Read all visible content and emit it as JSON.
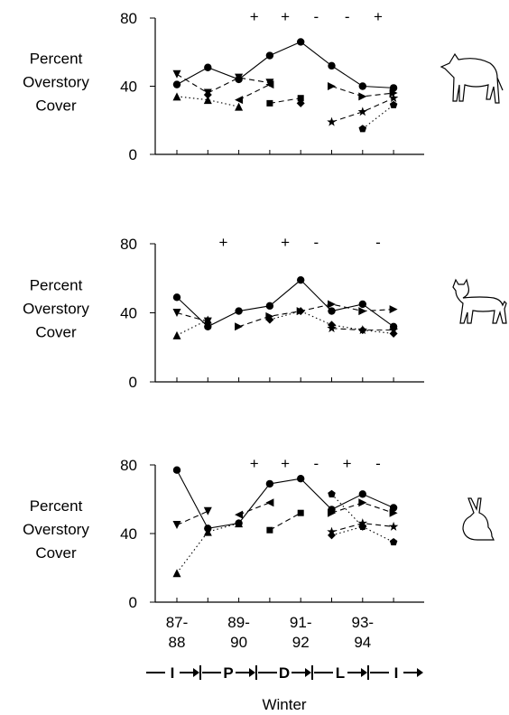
{
  "chart_data": [
    {
      "type": "line",
      "ylabel": "Percent Overstory Cover",
      "ylim": [
        0,
        80
      ],
      "yticks": [
        0,
        40,
        80
      ],
      "changes": [
        null,
        null,
        "+",
        "+",
        "-",
        "-",
        "+"
      ],
      "series": [
        {
          "marker": "circle",
          "dash": "solid",
          "color": "#000000",
          "values": [
            41,
            51,
            44,
            58,
            66,
            52,
            40,
            39
          ]
        },
        {
          "marker": "triangle-down",
          "dash": "dashed",
          "color": "#000000",
          "values": [
            47,
            36,
            45,
            42,
            null,
            null,
            null,
            null
          ]
        },
        {
          "marker": "triangle-up",
          "dash": "dotted",
          "color": "#000000",
          "values": [
            34,
            32,
            28,
            null,
            null,
            null,
            null,
            null
          ]
        },
        {
          "marker": "triangle-left",
          "dash": "dashed",
          "color": "#000000",
          "values": [
            null,
            null,
            32,
            41,
            null,
            null,
            null,
            null
          ]
        },
        {
          "marker": "square",
          "dash": "dashed",
          "color": "#000000",
          "values": [
            null,
            null,
            null,
            30,
            33,
            null,
            null,
            null
          ]
        },
        {
          "marker": "diamond",
          "dash": "dotted",
          "color": "#000000",
          "values": [
            null,
            35,
            null,
            null,
            30,
            null,
            null,
            null
          ]
        },
        {
          "marker": "triangle-right",
          "dash": "dashed",
          "color": "#000000",
          "values": [
            null,
            null,
            null,
            null,
            null,
            40,
            34,
            36
          ]
        },
        {
          "marker": "star",
          "dash": "dashed",
          "color": "#000000",
          "values": [
            null,
            null,
            null,
            null,
            null,
            19,
            25,
            33
          ]
        },
        {
          "marker": "pentagon",
          "dash": "dotted",
          "color": "#000000",
          "values": [
            null,
            null,
            null,
            null,
            null,
            null,
            15,
            29
          ]
        }
      ]
    },
    {
      "type": "line",
      "ylabel": "Percent Overstory Cover",
      "ylim": [
        0,
        80
      ],
      "yticks": [
        0,
        40,
        80
      ],
      "changes": [
        null,
        "+",
        null,
        "+",
        "-",
        null,
        "-"
      ],
      "series": [
        {
          "marker": "circle",
          "dash": "solid",
          "color": "#000000",
          "values": [
            49,
            32,
            41,
            44,
            59,
            41,
            45,
            32
          ]
        },
        {
          "marker": "triangle-down",
          "dash": "dashed",
          "color": "#000000",
          "values": [
            40,
            35,
            null,
            null,
            null,
            null,
            null,
            null
          ]
        },
        {
          "marker": "triangle-up",
          "dash": "dotted",
          "color": "#000000",
          "values": [
            27,
            36,
            null,
            null,
            null,
            null,
            null,
            null
          ]
        },
        {
          "marker": "triangle-right",
          "dash": "dashed",
          "color": "#000000",
          "values": [
            null,
            null,
            32,
            38,
            41,
            45,
            41,
            42
          ]
        },
        {
          "marker": "diamond",
          "dash": "dotted",
          "color": "#000000",
          "values": [
            null,
            null,
            null,
            36,
            41,
            33,
            30,
            28
          ]
        },
        {
          "marker": "star",
          "dash": "dashed",
          "color": "#000000",
          "values": [
            null,
            null,
            null,
            null,
            null,
            31,
            30,
            30
          ]
        }
      ]
    },
    {
      "type": "line",
      "ylabel": "Percent Overstory Cover",
      "ylim": [
        0,
        80
      ],
      "yticks": [
        0,
        40,
        80
      ],
      "changes": [
        null,
        null,
        "+",
        "+",
        "-",
        "+",
        "-"
      ],
      "categories": [
        "87-\n88",
        null,
        "89-\n90",
        null,
        "91-\n92",
        null,
        "93-\n94",
        null
      ],
      "xlabel": "Winter",
      "phases": [
        "I",
        "P",
        "D",
        "L",
        "I"
      ],
      "series": [
        {
          "marker": "circle",
          "dash": "solid",
          "color": "#000000",
          "values": [
            77,
            43,
            46,
            69,
            72,
            54,
            63,
            55
          ]
        },
        {
          "marker": "triangle-down",
          "dash": "dashed",
          "color": "#000000",
          "values": [
            45,
            53,
            null,
            null,
            null,
            null,
            null,
            null
          ]
        },
        {
          "marker": "triangle-up",
          "dash": "dotted",
          "color": "#000000",
          "values": [
            17,
            41,
            46,
            null,
            null,
            null,
            null,
            null
          ]
        },
        {
          "marker": "triangle-left",
          "dash": "dashed",
          "color": "#000000",
          "values": [
            null,
            null,
            51,
            58,
            null,
            null,
            null,
            null
          ]
        },
        {
          "marker": "square",
          "dash": "dashed",
          "color": "#000000",
          "values": [
            null,
            null,
            null,
            42,
            52,
            null,
            null,
            null
          ]
        },
        {
          "marker": "pentagon",
          "dash": "dotted",
          "color": "#000000",
          "values": [
            null,
            null,
            null,
            null,
            null,
            63,
            44,
            35
          ]
        },
        {
          "marker": "triangle-right",
          "dash": "dashed",
          "color": "#000000",
          "values": [
            null,
            null,
            null,
            null,
            null,
            52,
            58,
            52
          ]
        },
        {
          "marker": "star",
          "dash": "dashed",
          "color": "#000000",
          "values": [
            null,
            null,
            null,
            null,
            null,
            41,
            46,
            44
          ]
        },
        {
          "marker": "diamond",
          "dash": "dotted",
          "color": "#000000",
          "values": [
            null,
            null,
            null,
            null,
            null,
            39,
            44,
            null
          ]
        }
      ]
    }
  ]
}
